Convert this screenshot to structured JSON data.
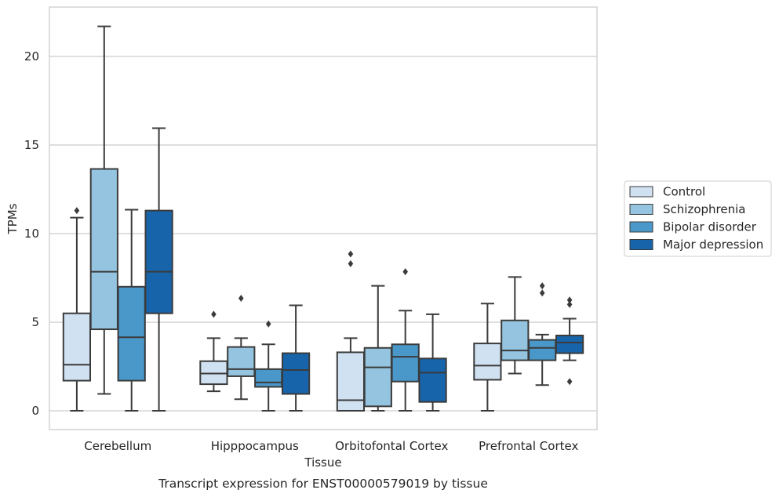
{
  "chart_data": {
    "type": "box",
    "caption": "Transcript expression for ENST00000579019 by tissue",
    "xlabel": "Tissue",
    "ylabel": "TPMs",
    "ylim": [
      -1.05,
      22.6
    ],
    "yticks": [
      0,
      5,
      10,
      15,
      20
    ],
    "ytick_labels": [
      "0",
      "5",
      "10",
      "15",
      "20"
    ],
    "grid": "horizontal",
    "legend_position": "right",
    "categories": [
      "Cerebellum",
      "Hipppocampus",
      "Orbitofontal Cortex",
      "Prefrontal Cortex"
    ],
    "series": [
      {
        "name": "Control",
        "color": "#d0e1f2",
        "boxes": [
          {
            "whislo": 0.0,
            "q1": 1.7,
            "med": 2.6,
            "q3": 5.5,
            "whishi": 10.9,
            "fliers": [
              11.3
            ]
          },
          {
            "whislo": 1.1,
            "q1": 1.5,
            "med": 2.1,
            "q3": 2.8,
            "whishi": 4.1,
            "fliers": [
              5.45
            ]
          },
          {
            "whislo": 0.0,
            "q1": 0.0,
            "med": 0.6,
            "q3": 3.3,
            "whishi": 4.1,
            "fliers": [
              8.3,
              8.85
            ]
          },
          {
            "whislo": 0.0,
            "q1": 1.75,
            "med": 2.55,
            "q3": 3.8,
            "whishi": 6.05,
            "fliers": []
          }
        ]
      },
      {
        "name": "Schizophrenia",
        "color": "#94c4df",
        "boxes": [
          {
            "whislo": 0.95,
            "q1": 4.6,
            "med": 7.85,
            "q3": 13.65,
            "whishi": 21.7,
            "fliers": []
          },
          {
            "whislo": 0.65,
            "q1": 1.95,
            "med": 2.35,
            "q3": 3.6,
            "whishi": 4.1,
            "fliers": [
              6.35
            ]
          },
          {
            "whislo": 0.0,
            "q1": 0.25,
            "med": 2.45,
            "q3": 3.55,
            "whishi": 7.05,
            "fliers": []
          },
          {
            "whislo": 2.1,
            "q1": 2.85,
            "med": 3.4,
            "q3": 5.1,
            "whishi": 7.55,
            "fliers": []
          }
        ]
      },
      {
        "name": "Bipolar disorder",
        "color": "#4a98c9",
        "boxes": [
          {
            "whislo": 0.0,
            "q1": 1.7,
            "med": 4.15,
            "q3": 7.0,
            "whishi": 11.35,
            "fliers": []
          },
          {
            "whislo": 0.0,
            "q1": 1.35,
            "med": 1.6,
            "q3": 2.35,
            "whishi": 3.75,
            "fliers": [
              4.9
            ]
          },
          {
            "whislo": 0.0,
            "q1": 1.65,
            "med": 3.05,
            "q3": 3.75,
            "whishi": 5.65,
            "fliers": [
              7.85
            ]
          },
          {
            "whislo": 1.45,
            "q1": 2.85,
            "med": 3.55,
            "q3": 4.0,
            "whishi": 4.3,
            "fliers": [
              6.65,
              7.05
            ]
          }
        ]
      },
      {
        "name": "Major depression",
        "color": "#1764ab",
        "boxes": [
          {
            "whislo": 0.0,
            "q1": 5.5,
            "med": 7.85,
            "q3": 11.3,
            "whishi": 15.95,
            "fliers": []
          },
          {
            "whislo": 0.0,
            "q1": 0.95,
            "med": 2.3,
            "q3": 3.25,
            "whishi": 5.95,
            "fliers": []
          },
          {
            "whislo": 0.0,
            "q1": 0.5,
            "med": 2.15,
            "q3": 2.95,
            "whishi": 5.45,
            "fliers": []
          },
          {
            "whislo": 2.85,
            "q1": 3.25,
            "med": 3.85,
            "q3": 4.25,
            "whishi": 5.2,
            "fliers": [
              1.65,
              6.0,
              6.25
            ]
          }
        ]
      }
    ]
  }
}
